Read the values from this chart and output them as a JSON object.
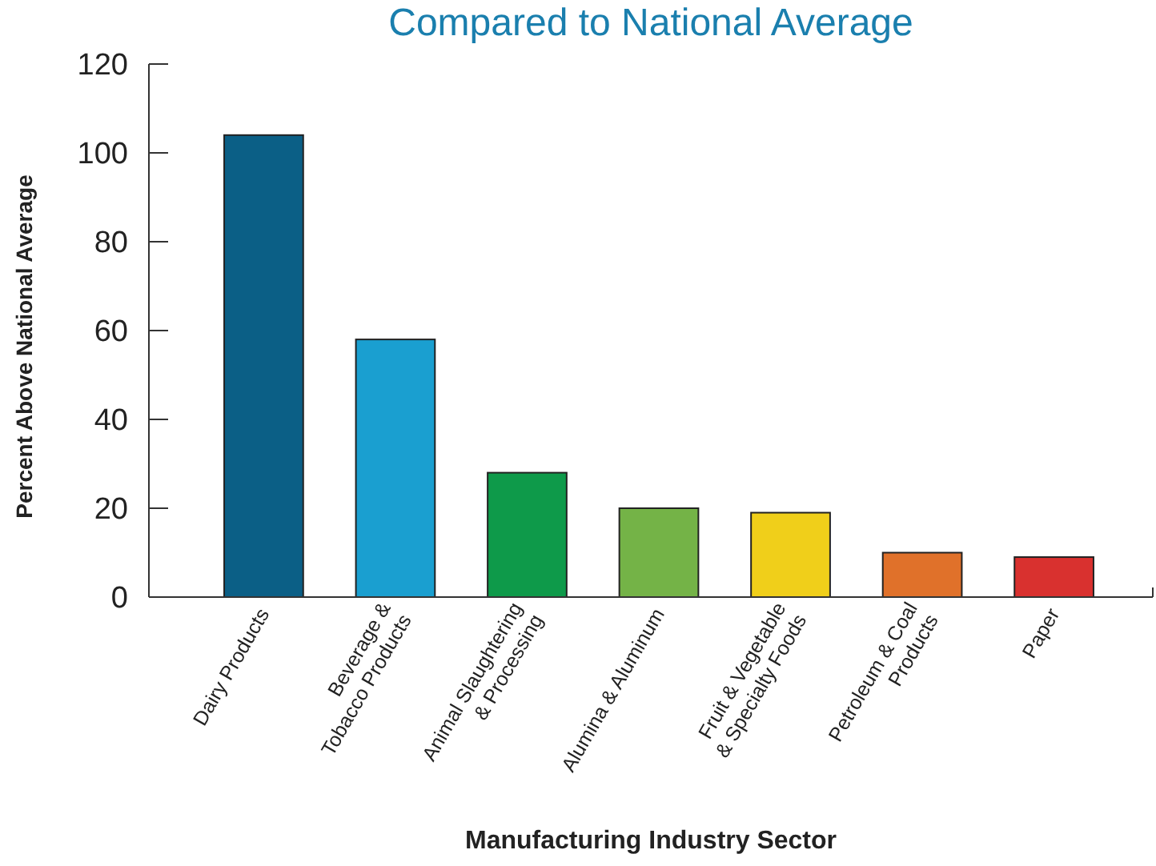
{
  "chart_data": {
    "type": "bar",
    "title": "Compared to National Average",
    "categories": [
      "Dairy Products",
      "Beverage &\nTobacco Products",
      "Animal Slaughtering\n& Processing",
      "Alumina & Aluminum",
      "Fruit & Vegetable\n& Specialty Foods",
      "Petroleum & Coal\nProducts",
      "Paper"
    ],
    "values": [
      104,
      58,
      28,
      20,
      19,
      10,
      9
    ],
    "colors": [
      "#0b5f86",
      "#1a9fd0",
      "#0e9a4a",
      "#74b347",
      "#f0cf1a",
      "#e0712a",
      "#d9312f"
    ],
    "ylim": [
      0,
      120
    ],
    "yticks": [
      0,
      20,
      40,
      60,
      80,
      100,
      120
    ],
    "xlabel": "Manufacturing Industry Sector",
    "ylabel": "Percent Above National Average",
    "grid": false
  }
}
